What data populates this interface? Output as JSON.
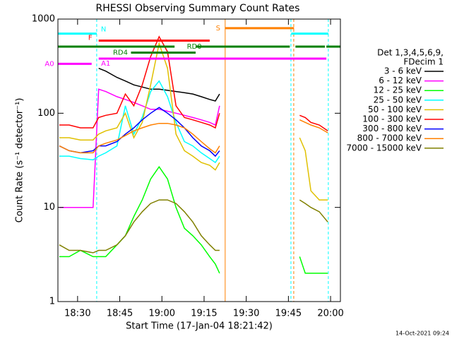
{
  "chart_data": {
    "type": "line",
    "title": "RHESSI Observing Summary Count Rates",
    "xlabel": "Start Time (17-Jan-04 18:21:42)",
    "ylabel": "Count Rate (s⁻¹ detector⁻¹)",
    "legend_title": [
      "Det 1,3,4,5,6,9,",
      "FDecim 1"
    ],
    "footer": "14-Oct-2021 09:24",
    "log_y": true,
    "xlim": [
      23,
      123.5
    ],
    "ylim": [
      1,
      1000
    ],
    "xticks": [
      {
        "value": 30,
        "label": "18:30"
      },
      {
        "value": 45,
        "label": "18:45"
      },
      {
        "value": 60,
        "label": "19:00"
      },
      {
        "value": 75,
        "label": "19:15"
      },
      {
        "value": 90,
        "label": "19:30"
      },
      {
        "value": 105,
        "label": "19:45"
      },
      {
        "value": 120,
        "label": "20:00"
      }
    ],
    "yticks": [
      1,
      10,
      100,
      1000
    ],
    "x": [
      23.5,
      27,
      31,
      35.5,
      37.5,
      40,
      44,
      47,
      50,
      53,
      56,
      59,
      62,
      65,
      68,
      71,
      74,
      77,
      79,
      80.5,
      95,
      109,
      111,
      113,
      116,
      119
    ],
    "series": [
      {
        "name": "3 - 6 keV",
        "color": "#000000",
        "values": [
          null,
          null,
          null,
          null,
          300,
          280,
          240,
          220,
          200,
          190,
          180,
          180,
          175,
          170,
          165,
          160,
          150,
          140,
          135,
          160,
          null,
          null,
          null,
          null,
          null,
          null
        ]
      },
      {
        "name": "6 - 12 keV",
        "color": "#ff00ff",
        "values": [
          10,
          10,
          10,
          10,
          180,
          170,
          150,
          140,
          130,
          120,
          110,
          110,
          105,
          100,
          95,
          90,
          85,
          80,
          75,
          120,
          null,
          null,
          null,
          null,
          null,
          null
        ]
      },
      {
        "name": "12 - 25 keV",
        "color": "#00ff00",
        "values": [
          3,
          3,
          3.5,
          3,
          3,
          3,
          4,
          5,
          8,
          12,
          20,
          27,
          20,
          10,
          6,
          5,
          4,
          3,
          2.5,
          2,
          null,
          3,
          2,
          2,
          2,
          2
        ]
      },
      {
        "name": "25 - 50 keV",
        "color": "#00ffff",
        "values": [
          35,
          35,
          33,
          32,
          35,
          38,
          45,
          120,
          60,
          90,
          170,
          220,
          150,
          80,
          50,
          45,
          38,
          33,
          30,
          35,
          null,
          null,
          null,
          null,
          null,
          null
        ]
      },
      {
        "name": "50 - 100 keV",
        "color": "#e0c000",
        "values": [
          55,
          55,
          52,
          52,
          60,
          65,
          70,
          100,
          55,
          80,
          200,
          550,
          300,
          60,
          40,
          35,
          30,
          28,
          25,
          30,
          null,
          55,
          40,
          15,
          12,
          12
        ]
      },
      {
        "name": "100 - 300 keV",
        "color": "#ff0000",
        "values": [
          75,
          75,
          70,
          70,
          90,
          95,
          100,
          160,
          120,
          200,
          400,
          650,
          450,
          120,
          90,
          85,
          80,
          75,
          70,
          100,
          null,
          95,
          90,
          80,
          75,
          65
        ]
      },
      {
        "name": "300 - 800 keV",
        "color": "#0000ff",
        "values": [
          45,
          40,
          38,
          40,
          45,
          45,
          50,
          60,
          70,
          85,
          100,
          115,
          100,
          85,
          70,
          55,
          45,
          40,
          35,
          40,
          null,
          null,
          null,
          null,
          null,
          null
        ]
      },
      {
        "name": "800 - 7000 keV",
        "color": "#ff8000",
        "values": [
          45,
          40,
          38,
          38,
          45,
          48,
          52,
          58,
          65,
          70,
          75,
          78,
          78,
          75,
          70,
          60,
          50,
          42,
          38,
          45,
          null,
          85,
          80,
          75,
          70,
          62
        ]
      },
      {
        "name": "7000 - 15000 keV",
        "color": "#808000",
        "values": [
          4,
          3.5,
          3.5,
          3.3,
          3.5,
          3.5,
          4,
          5,
          7,
          9,
          11,
          12,
          12,
          11,
          9,
          7,
          5,
          4,
          3.5,
          3.5,
          null,
          12,
          11,
          10,
          9,
          7
        ]
      }
    ],
    "flags": [
      {
        "label": "N",
        "color": "#00ffff",
        "level": 700,
        "spans": [
          [
            23,
            36.8
          ],
          [
            106,
            119.2
          ]
        ]
      },
      {
        "label": "F",
        "color": "#ff0000",
        "level": 590,
        "spans": [
          [
            37.5,
            77
          ]
        ]
      },
      {
        "label": "RD0",
        "color": "#008000",
        "level": 510,
        "spans": [
          [
            23,
            64.5
          ],
          [
            72,
            105.5
          ],
          [
            107.5,
            118
          ],
          [
            118.5,
            123.5
          ]
        ]
      },
      {
        "label": "RD4",
        "color": "#008000",
        "level": 440,
        "spans": [
          [
            49,
            72
          ]
        ]
      },
      {
        "label": "A0",
        "color": "#ff00ff",
        "level": 335,
        "spans": [
          [
            23,
            35
          ]
        ]
      },
      {
        "label": "A1",
        "color": "#ff00ff",
        "level": 380,
        "spans": [
          [
            37.5,
            118.5
          ]
        ]
      },
      {
        "label": "S",
        "color": "#ff8000",
        "level": 800,
        "spans": [
          [
            82.5,
            107
          ]
        ]
      }
    ],
    "vlines": [
      {
        "x": 36.8,
        "color": "#00ffff",
        "dashed": true
      },
      {
        "x": 82.5,
        "color": "#ff8000",
        "dashed": false
      },
      {
        "x": 105.9,
        "color": "#00ffff",
        "dashed": true
      },
      {
        "x": 106.9,
        "color": "#ff8000",
        "dashed": true
      },
      {
        "x": 119.2,
        "color": "#00ffff",
        "dashed": true
      }
    ]
  }
}
